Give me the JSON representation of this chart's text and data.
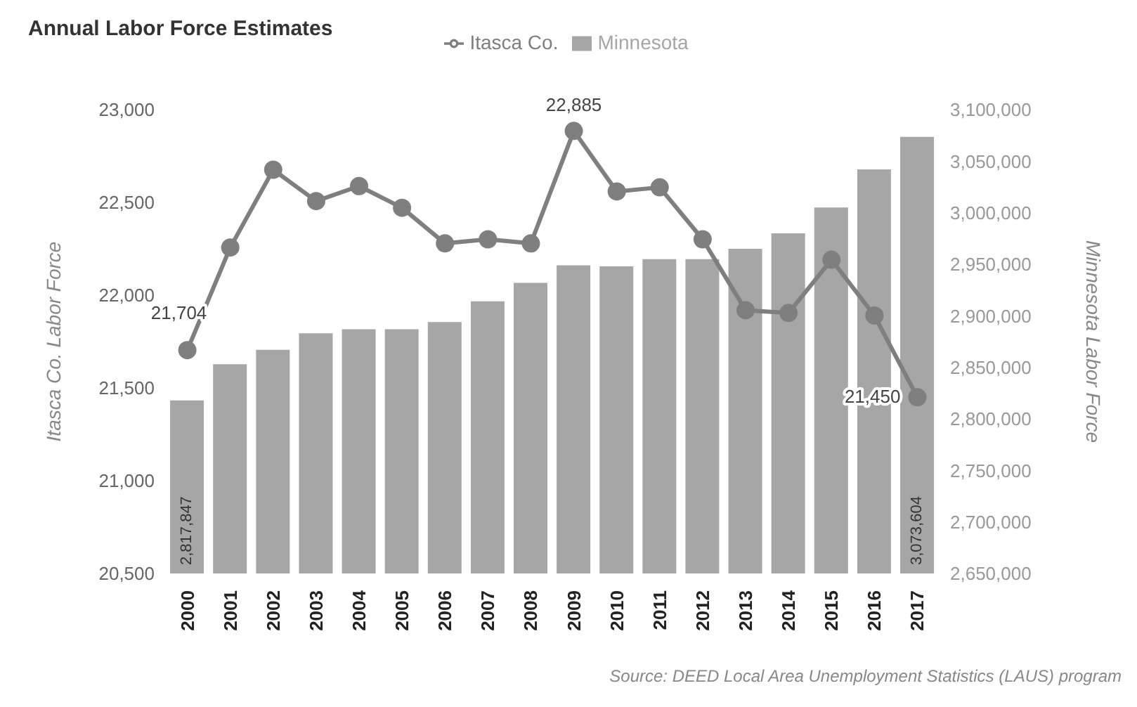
{
  "chart_data": {
    "type": "bar",
    "title": "Annual Labor Force Estimates",
    "ylabel": "Itasca Co. Labor Force",
    "y2label": "Minnesota Labor Force",
    "annotations": [
      "Source: DEED Local Area Unemployment Statistics (LAUS) program"
    ],
    "categories": [
      "2000",
      "2001",
      "2002",
      "2003",
      "2004",
      "2005",
      "2006",
      "2007",
      "2008",
      "2009",
      "2010",
      "2011",
      "2012",
      "2013",
      "2014",
      "2015",
      "2016",
      "2017"
    ],
    "series": [
      {
        "name": "Minnesota",
        "axis": "y2",
        "color": "#a6a6a6",
        "values": [
          2817847,
          2853000,
          2867000,
          2883000,
          2887000,
          2887000,
          2894000,
          2914000,
          2932000,
          2949000,
          2948000,
          2955000,
          2955000,
          2965000,
          2980000,
          3005000,
          3042000,
          3073604
        ],
        "value_labels": [
          "2,817,847",
          null,
          null,
          null,
          null,
          null,
          null,
          null,
          null,
          null,
          null,
          null,
          null,
          null,
          null,
          null,
          null,
          "3,073,604"
        ]
      },
      {
        "name": "Itasca Co.",
        "type": "line",
        "axis": "y",
        "color": "#7f7f7f",
        "values": [
          21704,
          22257,
          22676,
          22507,
          22588,
          22471,
          22279,
          22301,
          22279,
          22885,
          22559,
          22581,
          22301,
          21919,
          21904,
          22191,
          21890,
          21450
        ],
        "value_labels": [
          "21,704",
          null,
          null,
          null,
          null,
          null,
          null,
          null,
          null,
          "22,885",
          null,
          null,
          null,
          null,
          null,
          null,
          null,
          "21,450"
        ]
      }
    ],
    "ylim": [
      20500,
      23000
    ],
    "yticks": [
      {
        "value": 20500,
        "label": "20,500"
      },
      {
        "value": 21000,
        "label": "21,000"
      },
      {
        "value": 21500,
        "label": "21,500"
      },
      {
        "value": 22000,
        "label": "22,000"
      },
      {
        "value": 22500,
        "label": "22,500"
      },
      {
        "value": 23000,
        "label": "23,000"
      }
    ],
    "y2lim": [
      2650000,
      3100000
    ],
    "y2ticks": [
      {
        "value": 2650000,
        "label": "2,650,000"
      },
      {
        "value": 2700000,
        "label": "2,700,000"
      },
      {
        "value": 2750000,
        "label": "2,750,000"
      },
      {
        "value": 2800000,
        "label": "2,800,000"
      },
      {
        "value": 2850000,
        "label": "2,850,000"
      },
      {
        "value": 2900000,
        "label": "2,900,000"
      },
      {
        "value": 2950000,
        "label": "2,950,000"
      },
      {
        "value": 3000000,
        "label": "3,000,000"
      },
      {
        "value": 3050000,
        "label": "3,050,000"
      },
      {
        "value": 3100000,
        "label": "3,100,000"
      }
    ],
    "legend": "top",
    "marker": "circle"
  }
}
